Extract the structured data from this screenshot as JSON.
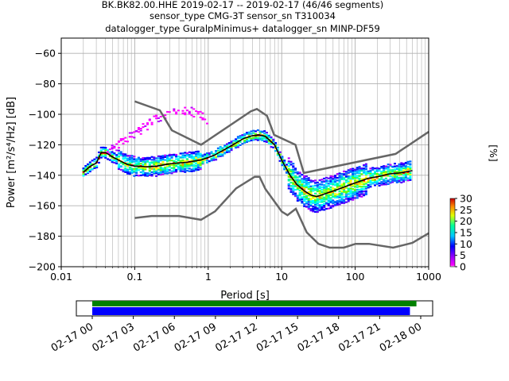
{
  "title_lines": [
    "BK.BK82.00.HHE   2019-02-17 -- 2019-02-17  (46/46 segments)",
    "sensor_type CMG-3T sensor_sn T310034",
    "datalogger_type GuralpMinimus+ datalogger_sn MINP-DF59"
  ],
  "chart_data": {
    "type": "heatmap",
    "xlabel": "Period [s]",
    "ylabel": "Power [m²/s⁴/Hz] [dB]",
    "xscale": "log",
    "xlim": [
      0.01,
      1000
    ],
    "ylim": [
      -200,
      -50
    ],
    "x_ticks": [
      {
        "value": 0.01,
        "label": "0.01"
      },
      {
        "value": 0.1,
        "label": "0.1"
      },
      {
        "value": 1,
        "label": "1"
      },
      {
        "value": 10,
        "label": "10"
      },
      {
        "value": 100,
        "label": "100"
      },
      {
        "value": 1000,
        "label": "1000"
      }
    ],
    "y_ticks": [
      {
        "value": -60,
        "label": "−60"
      },
      {
        "value": -80,
        "label": "−80"
      },
      {
        "value": -100,
        "label": "−100"
      },
      {
        "value": -120,
        "label": "−120"
      },
      {
        "value": -140,
        "label": "−140"
      },
      {
        "value": -160,
        "label": "−160"
      },
      {
        "value": -180,
        "label": "−180"
      },
      {
        "value": -200,
        "label": "−200"
      }
    ],
    "grid": true,
    "colorbar": {
      "label": "[%]",
      "range": [
        0,
        30
      ],
      "ticks": [
        {
          "value": 0,
          "label": "0"
        },
        {
          "value": 5,
          "label": "5"
        },
        {
          "value": 10,
          "label": "10"
        },
        {
          "value": 15,
          "label": "15"
        },
        {
          "value": 20,
          "label": "20"
        },
        {
          "value": 25,
          "label": "25"
        },
        {
          "value": 30,
          "label": "30"
        }
      ]
    },
    "noise_model_high": [
      [
        0.1,
        -91.5
      ],
      [
        0.22,
        -97.4
      ],
      [
        0.32,
        -110.5
      ],
      [
        0.8,
        -120
      ],
      [
        3.8,
        -98
      ],
      [
        4.6,
        -96.5
      ],
      [
        6.3,
        -101
      ],
      [
        7.9,
        -113.5
      ],
      [
        15.4,
        -120.0
      ],
      [
        20,
        -138.5
      ],
      [
        354.8,
        -126
      ],
      [
        1000,
        -111.5
      ]
    ],
    "noise_model_low": [
      [
        0.1,
        -168
      ],
      [
        0.17,
        -166.7
      ],
      [
        0.4,
        -166.7
      ],
      [
        0.8,
        -169.2
      ],
      [
        1.24,
        -163.7
      ],
      [
        2.4,
        -148.6
      ],
      [
        4.3,
        -141
      ],
      [
        5,
        -141
      ],
      [
        6,
        -149
      ],
      [
        10,
        -163.8
      ],
      [
        12,
        -166.2
      ],
      [
        15.6,
        -162
      ],
      [
        21.9,
        -177.5
      ],
      [
        31.6,
        -185
      ],
      [
        45,
        -187.5
      ],
      [
        70,
        -187.5
      ],
      [
        101,
        -185
      ],
      [
        154,
        -185
      ],
      [
        328,
        -187.5
      ],
      [
        600,
        -184.4
      ],
      [
        1000,
        -178
      ]
    ],
    "mean_psd": [
      [
        0.02,
        -138
      ],
      [
        0.025,
        -134
      ],
      [
        0.03,
        -132
      ],
      [
        0.035,
        -125
      ],
      [
        0.04,
        -125
      ],
      [
        0.05,
        -128
      ],
      [
        0.06,
        -130
      ],
      [
        0.08,
        -133
      ],
      [
        0.1,
        -134
      ],
      [
        0.15,
        -134.5
      ],
      [
        0.2,
        -134
      ],
      [
        0.3,
        -132.5
      ],
      [
        0.5,
        -131.5
      ],
      [
        0.8,
        -130
      ],
      [
        1.2,
        -127
      ],
      [
        2,
        -121
      ],
      [
        3,
        -116
      ],
      [
        4,
        -114
      ],
      [
        5,
        -113.5
      ],
      [
        6,
        -114.5
      ],
      [
        8,
        -120
      ],
      [
        10,
        -130
      ],
      [
        13,
        -140
      ],
      [
        16,
        -146
      ],
      [
        20,
        -150
      ],
      [
        25,
        -153
      ],
      [
        30,
        -154
      ],
      [
        40,
        -152
      ],
      [
        60,
        -149
      ],
      [
        100,
        -145
      ],
      [
        150,
        -142
      ],
      [
        200,
        -141
      ],
      [
        300,
        -139
      ],
      [
        400,
        -138.5
      ],
      [
        600,
        -137
      ]
    ],
    "secondary_mode_psd": [
      [
        0.04,
        -125
      ],
      [
        0.06,
        -120
      ],
      [
        0.1,
        -113
      ],
      [
        0.15,
        -107
      ],
      [
        0.2,
        -103
      ],
      [
        0.3,
        -100
      ],
      [
        0.45,
        -98.5
      ],
      [
        0.6,
        -98.5
      ],
      [
        0.8,
        -101
      ],
      [
        1,
        -104
      ]
    ],
    "time_axis": {
      "ticks": [
        "02-17 00",
        "02-17 03",
        "02-17 06",
        "02-17 09",
        "02-17 12",
        "02-17 15",
        "02-17 18",
        "02-17 21",
        "02-18 00"
      ],
      "data_coverage": [
        0.0,
        0.95
      ],
      "psd_coverage": [
        0.0,
        0.93
      ],
      "data_coverage_color": "#008000",
      "psd_coverage_color": "#0000ff"
    },
    "colors": {
      "noise_model": "#666666",
      "mean": "#000000"
    }
  }
}
